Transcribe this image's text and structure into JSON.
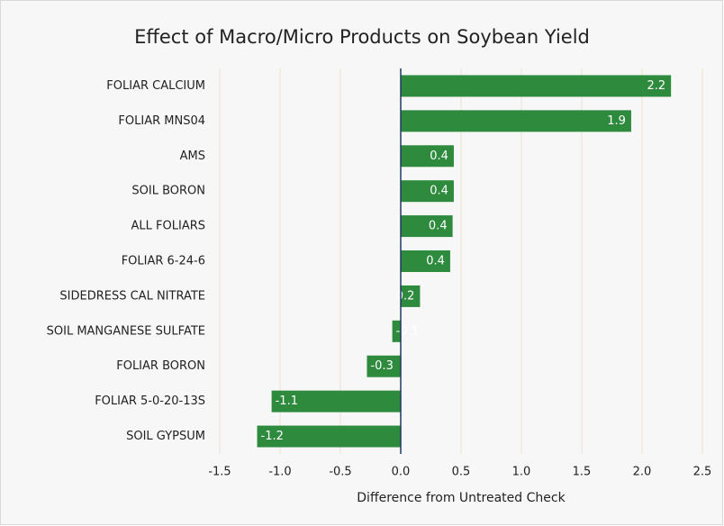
{
  "chart_data": {
    "type": "barh",
    "title": "Effect of Macro/Micro Products on Soybean Yield",
    "x_label": "Difference from Untreated Check",
    "categories": [
      "FOLIAR CALCIUM",
      "FOLIAR MNS04",
      "AMS",
      "SOIL BORON",
      "ALL FOLIARS",
      "FOLIAR 6-24-6",
      "SIDEDRESS CAL NITRATE",
      "SOIL MANGANESE SULFATE",
      "FOLIAR BORON",
      "FOLIAR 5-0-20-13S",
      "SOIL GYPSUM"
    ],
    "values": [
      2.24,
      1.91,
      0.44,
      0.44,
      0.43,
      0.41,
      0.16,
      -0.07,
      -0.28,
      -1.07,
      -1.19
    ],
    "value_labels": [
      "2.2",
      "1.9",
      "0.4",
      "0.4",
      "0.4",
      "0.4",
      "0.2",
      "-0.1",
      "-0.3",
      "-1.1",
      "-1.2"
    ],
    "color": "#2e8b3e",
    "xlim": [
      -1.5,
      2.5
    ],
    "xticks": [
      {
        "value": -1.5,
        "label": "-1.5"
      },
      {
        "value": -1,
        "label": "-1.0"
      },
      {
        "value": -0.5,
        "label": "-0.5"
      },
      {
        "value": 0,
        "label": "0.0"
      },
      {
        "value": 0.5,
        "label": "0.5"
      },
      {
        "value": 1,
        "label": "1.0"
      },
      {
        "value": 1.5,
        "label": "1.5"
      },
      {
        "value": 2,
        "label": "2.0"
      },
      {
        "value": 2.5,
        "label": "2.5"
      }
    ],
    "grid": true
  }
}
